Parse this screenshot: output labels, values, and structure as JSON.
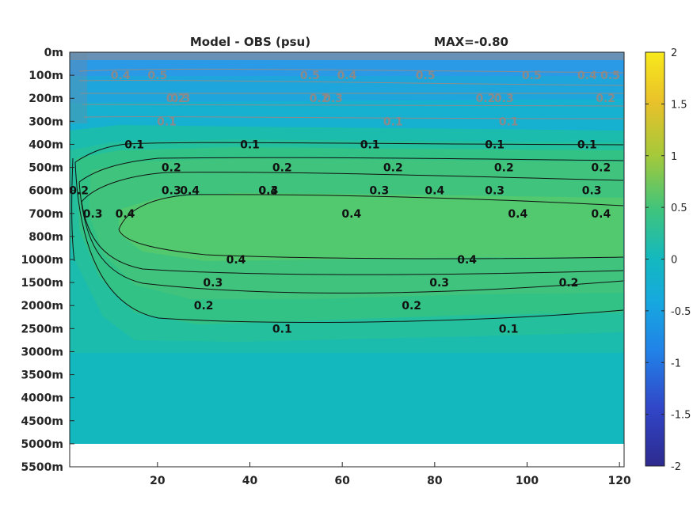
{
  "chart_data": {
    "type": "heatmap",
    "title": "Model - OBS (psu)",
    "max_label": "MAX=-0.80",
    "x_ticks": [
      20,
      40,
      60,
      80,
      100,
      120
    ],
    "xlim": [
      1,
      121
    ],
    "y_ticks": [
      "0m",
      "100m",
      "200m",
      "300m",
      "400m",
      "500m",
      "600m",
      "700m",
      "800m",
      "1000m",
      "1500m",
      "2000m",
      "2500m",
      "3000m",
      "3500m",
      "4000m",
      "4500m",
      "5000m",
      "5500m"
    ],
    "colorbar": {
      "range": [
        -2,
        2
      ],
      "ticks": [
        "2",
        "1.5",
        "1",
        "0.5",
        "0",
        "-0.5",
        "-1",
        "-1.5",
        "-2"
      ],
      "colors": [
        "#2d2a8e",
        "#3b5fe0",
        "#1fa0e6",
        "#13b8bf",
        "#3fc47c",
        "#a5c93a",
        "#e9c12a",
        "#f8e91b"
      ]
    },
    "positive_contours": [
      {
        "level": 0.1,
        "labels": [
          {
            "x": 15,
            "depth": "400m"
          },
          {
            "x": 40,
            "depth": "400m"
          },
          {
            "x": 66,
            "depth": "400m"
          },
          {
            "x": 93,
            "depth": "400m"
          },
          {
            "x": 113,
            "depth": "400m"
          },
          {
            "x": 47,
            "depth": "2500m"
          },
          {
            "x": 96,
            "depth": "2500m"
          }
        ]
      },
      {
        "level": 0.2,
        "labels": [
          {
            "x": 3,
            "depth": "600m"
          },
          {
            "x": 23,
            "depth": "500m"
          },
          {
            "x": 47,
            "depth": "500m"
          },
          {
            "x": 71,
            "depth": "500m"
          },
          {
            "x": 95,
            "depth": "500m"
          },
          {
            "x": 116,
            "depth": "500m"
          },
          {
            "x": 30,
            "depth": "2000m"
          },
          {
            "x": 75,
            "depth": "2000m"
          },
          {
            "x": 109,
            "depth": "1500m"
          }
        ]
      },
      {
        "level": 0.3,
        "labels": [
          {
            "x": 6,
            "depth": "700m"
          },
          {
            "x": 23,
            "depth": "600m"
          },
          {
            "x": 44,
            "depth": "600m"
          },
          {
            "x": 68,
            "depth": "600m"
          },
          {
            "x": 93,
            "depth": "600m"
          },
          {
            "x": 114,
            "depth": "600m"
          },
          {
            "x": 32,
            "depth": "1500m"
          },
          {
            "x": 81,
            "depth": "1500m"
          }
        ]
      },
      {
        "level": 0.4,
        "labels": [
          {
            "x": 13,
            "depth": "700m"
          },
          {
            "x": 27,
            "depth": "600m"
          },
          {
            "x": 44,
            "depth": "600m"
          },
          {
            "x": 62,
            "depth": "700m"
          },
          {
            "x": 80,
            "depth": "600m"
          },
          {
            "x": 98,
            "depth": "700m"
          },
          {
            "x": 116,
            "depth": "700m"
          },
          {
            "x": 37,
            "depth": "1000m"
          },
          {
            "x": 87,
            "depth": "1000m"
          }
        ]
      }
    ],
    "negative_contours": [
      {
        "level": -0.1,
        "labels": [
          {
            "x": 22,
            "depth": "300m"
          },
          {
            "x": 71,
            "depth": "300m"
          },
          {
            "x": 96,
            "depth": "300m"
          }
        ]
      },
      {
        "level": -0.2,
        "labels": [
          {
            "x": 24,
            "depth": "200m"
          },
          {
            "x": 55,
            "depth": "200m"
          },
          {
            "x": 91,
            "depth": "200m"
          },
          {
            "x": 117,
            "depth": "200m"
          }
        ]
      },
      {
        "level": -0.3,
        "labels": [
          {
            "x": 25,
            "depth": "200m"
          },
          {
            "x": 58,
            "depth": "200m"
          },
          {
            "x": 95,
            "depth": "200m"
          }
        ]
      },
      {
        "level": -0.4,
        "labels": [
          {
            "x": 12,
            "depth": "100m"
          },
          {
            "x": 61,
            "depth": "100m"
          },
          {
            "x": 113,
            "depth": "100m"
          }
        ]
      },
      {
        "level": -0.5,
        "labels": [
          {
            "x": 20,
            "depth": "100m"
          },
          {
            "x": 53,
            "depth": "100m"
          },
          {
            "x": 78,
            "depth": "100m"
          },
          {
            "x": 101,
            "depth": "100m"
          },
          {
            "x": 118,
            "depth": "100m"
          }
        ]
      }
    ],
    "grid": false
  }
}
